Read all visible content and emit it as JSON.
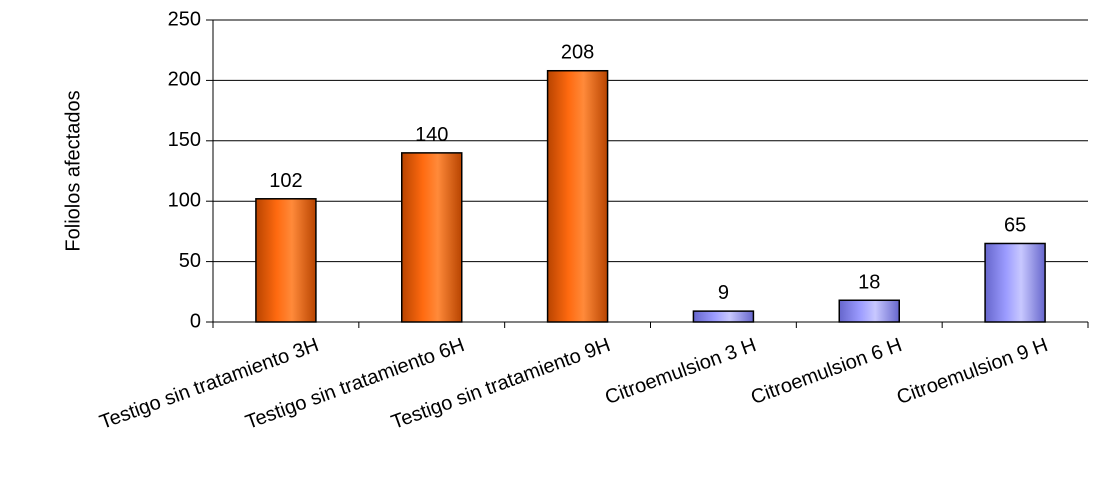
{
  "chart_data": {
    "type": "bar",
    "title": "",
    "xlabel": "",
    "ylabel": "Foliolos afectados",
    "ylim": [
      0,
      250
    ],
    "yticks": [
      0,
      50,
      100,
      150,
      200,
      250
    ],
    "grid": true,
    "legend": "none",
    "categories": [
      "Testigo sin tratamiento 3H",
      "Testigo sin tratamiento 6H",
      "Testigo sin tratamiento 9H",
      "Citroemulsion 3 H",
      "Citroemulsion 6 H",
      "Citroemulsion 9 H"
    ],
    "values": [
      102,
      140,
      208,
      9,
      18,
      65
    ],
    "bar_colors": [
      "#ff6600",
      "#ff6600",
      "#ff6600",
      "#9999ff",
      "#9999ff",
      "#9999ff"
    ]
  }
}
